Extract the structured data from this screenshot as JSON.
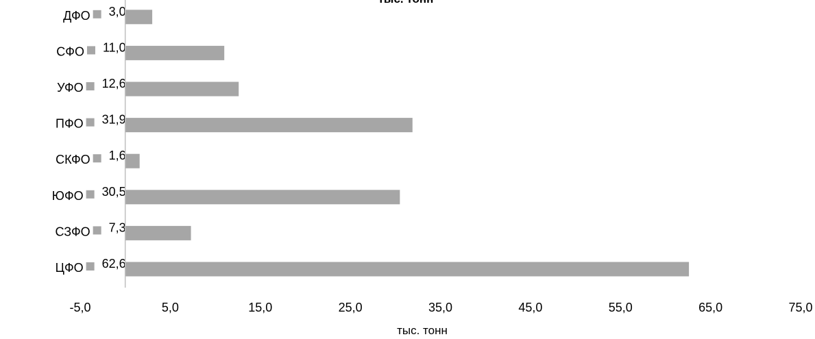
{
  "chart_data": {
    "type": "bar",
    "orientation": "horizontal",
    "title": "тыс. тонн",
    "xlabel": "тыс. тонн",
    "ylabel": "",
    "categories": [
      "ЦФО",
      "СЗФО",
      "ЮФО",
      "СКФО",
      "ПФО",
      "УФО",
      "СФО",
      "ДФО"
    ],
    "values": [
      62.6,
      7.3,
      30.5,
      1.6,
      31.9,
      12.6,
      11.0,
      3.0
    ],
    "data_labels": [
      "62,6",
      "7,3",
      "30,5",
      "1,6",
      "31,9",
      "12,6",
      "11,0",
      "3,0"
    ],
    "xlim": [
      -5,
      75
    ],
    "x_ticks": [
      "-5,0",
      "5,0",
      "15,0",
      "25,0",
      "35,0",
      "45,0",
      "55,0",
      "65,0",
      "75,0"
    ],
    "grid": false,
    "colors": {
      "bar": "#a6a6a6",
      "marker": "#a6a6a6",
      "axis": "#bfbfbf"
    }
  }
}
